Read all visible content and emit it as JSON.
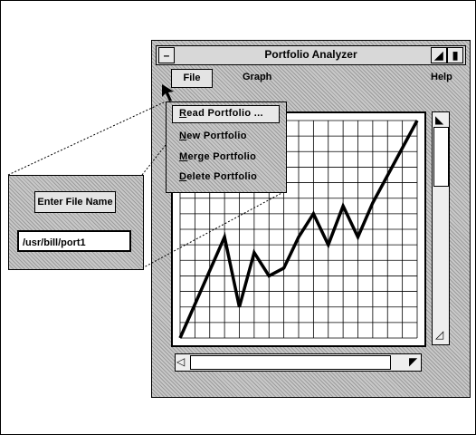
{
  "window": {
    "title": "Portfolio Analyzer"
  },
  "menubar": {
    "items": [
      "File",
      "Graph",
      "Help"
    ]
  },
  "file_menu": {
    "items": [
      {
        "mnemonic": "R",
        "rest": "ead Portfolio ..."
      },
      {
        "mnemonic": "N",
        "rest": "ew Portfolio"
      },
      {
        "mnemonic": "M",
        "rest": "erge Portfolio"
      },
      {
        "mnemonic": "D",
        "rest": "elete Portfolio"
      }
    ]
  },
  "dialog": {
    "button_label": "Enter File Name",
    "input_value": "/usr/bill/port1"
  },
  "icons": [
    "window-menu-icon",
    "minimize-icon",
    "maximize-icon",
    "scroll-up-icon",
    "scroll-down-icon",
    "scroll-left-icon",
    "scroll-right-icon",
    "mouse-pointer-icon"
  ],
  "chart_data": {
    "type": "line",
    "grid": true,
    "xlim": [
      0,
      16
    ],
    "ylim": [
      0,
      14
    ],
    "series": [
      {
        "x": [
          0,
          3,
          4,
          5,
          6,
          7,
          8,
          9,
          10,
          11,
          12,
          13,
          16
        ],
        "values": [
          0,
          6.5,
          2,
          5.5,
          4,
          4.5,
          6.5,
          8,
          6,
          8.5,
          6.5,
          8.7,
          14
        ]
      }
    ]
  }
}
